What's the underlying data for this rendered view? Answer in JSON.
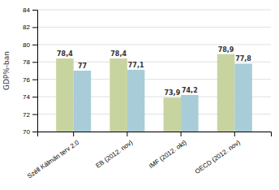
{
  "chart_data": {
    "type": "bar",
    "categories": [
      "Széll Kálmán terv 2.0",
      "EB (2012. nov)",
      "IMF (2012. okt)",
      "OECD (2012. nov)"
    ],
    "series": [
      {
        "color": "#c8d4a0",
        "values": [
          78.4,
          78.4,
          73.9,
          78.9
        ],
        "value_labels": [
          "78,4",
          "78,4",
          "73,9",
          "78,9"
        ]
      },
      {
        "color": "#a8ccd8",
        "values": [
          77.0,
          77.1,
          74.2,
          77.8
        ],
        "value_labels": [
          "77",
          "77,1",
          "74,2",
          "77,8"
        ]
      }
    ],
    "ylabel": "GDP%-ban",
    "ylim": [
      70,
      84
    ],
    "yticks": [
      70,
      72,
      74,
      76,
      78,
      80,
      82,
      84
    ],
    "grid": true,
    "data_labels": true
  }
}
